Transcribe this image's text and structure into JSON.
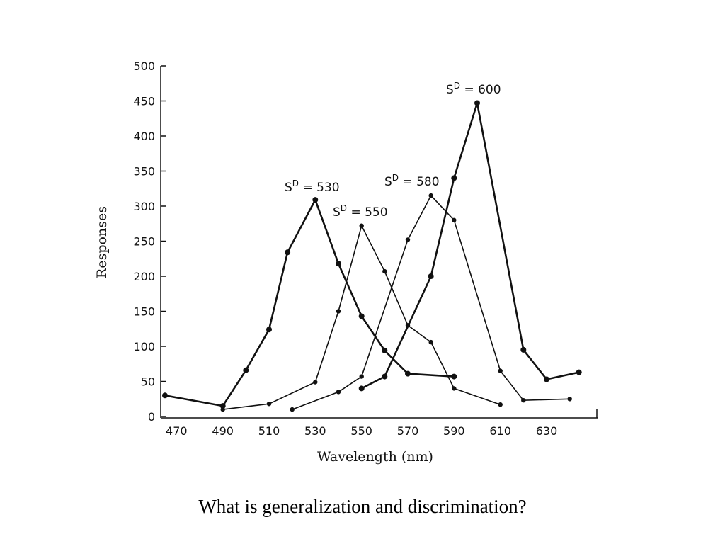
{
  "caption": "What is generalization and discrimination?",
  "chart_data": {
    "type": "line",
    "xlabel": "Wavelength (nm)",
    "ylabel": "Responses",
    "xlim": [
      465,
      645
    ],
    "ylim": [
      0,
      500
    ],
    "x_ticks": [
      470,
      490,
      510,
      530,
      550,
      570,
      590,
      610,
      630
    ],
    "y_ticks": [
      0,
      50,
      100,
      150,
      200,
      250,
      300,
      350,
      400,
      450,
      500
    ],
    "grid": false,
    "color": "#111111",
    "series": [
      {
        "name": "S^D = 530",
        "label_main": "S",
        "label_sup": "D",
        "label_rest": " = 530",
        "stroke_width": 2.6,
        "points": [
          [
            465,
            30
          ],
          [
            490,
            15
          ],
          [
            500,
            66
          ],
          [
            510,
            124
          ],
          [
            518,
            234
          ],
          [
            530,
            309
          ],
          [
            540,
            218
          ],
          [
            550,
            143
          ],
          [
            560,
            94
          ],
          [
            570,
            61
          ],
          [
            590,
            57
          ]
        ]
      },
      {
        "name": "S^D = 550",
        "label_main": "S",
        "label_sup": "D",
        "label_rest": " = 550",
        "stroke_width": 1.6,
        "points": [
          [
            490,
            10
          ],
          [
            510,
            18
          ],
          [
            530,
            49
          ],
          [
            540,
            150
          ],
          [
            550,
            272
          ],
          [
            560,
            207
          ],
          [
            570,
            130
          ],
          [
            580,
            106
          ],
          [
            590,
            40
          ],
          [
            610,
            17
          ]
        ]
      },
      {
        "name": "S^D = 580",
        "label_main": "S",
        "label_sup": "D",
        "label_rest": " = 580",
        "stroke_width": 1.6,
        "points": [
          [
            520,
            10
          ],
          [
            540,
            35
          ],
          [
            550,
            57
          ],
          [
            570,
            252
          ],
          [
            580,
            315
          ],
          [
            590,
            280
          ],
          [
            610,
            65
          ],
          [
            620,
            23
          ],
          [
            640,
            25
          ]
        ]
      },
      {
        "name": "S^D = 600",
        "label_main": "S",
        "label_sup": "D",
        "label_rest": " = 600",
        "stroke_width": 2.6,
        "points": [
          [
            550,
            40
          ],
          [
            560,
            57
          ],
          [
            580,
            200
          ],
          [
            590,
            340
          ],
          [
            600,
            447
          ],
          [
            620,
            95
          ],
          [
            630,
            53
          ],
          [
            644,
            63
          ]
        ]
      }
    ]
  }
}
